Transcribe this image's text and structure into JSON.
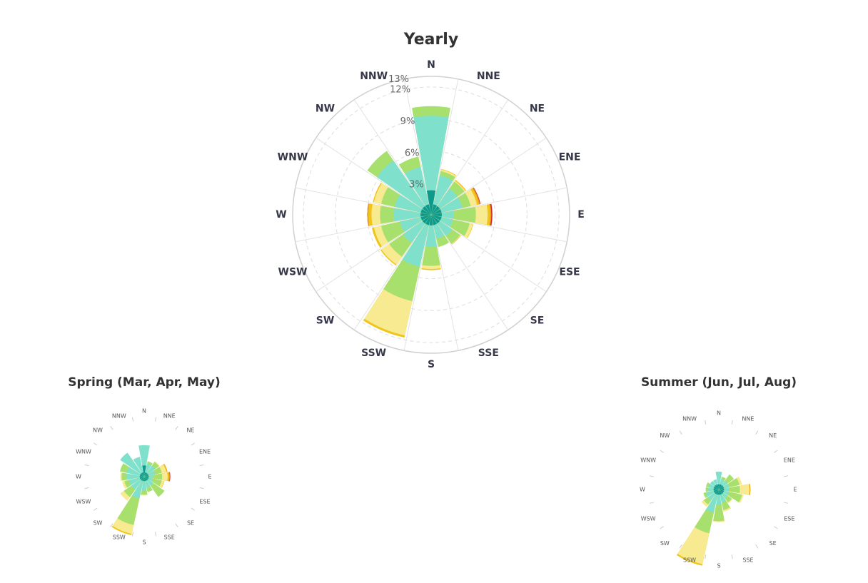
{
  "colors": {
    "bins": [
      "#0d9a8a",
      "#7fe0cc",
      "#a8e06e",
      "#f7ea90",
      "#f0c419",
      "#e8961e",
      "#cc2a2a"
    ],
    "grid_solid": "#d0d0d0",
    "grid_dashed": "#dddddd",
    "spoke": "#e3e3e3"
  },
  "chart_data": [
    {
      "type": "windrose",
      "title": "Yearly",
      "directions": [
        "N",
        "NNE",
        "NE",
        "ENE",
        "E",
        "ESE",
        "SE",
        "SSE",
        "S",
        "SSW",
        "SW",
        "WSW",
        "W",
        "WNW",
        "NW",
        "NNW"
      ],
      "rmax": 13,
      "radial_ticks": [
        "3%",
        "6%",
        "9%",
        "12%",
        "13%"
      ],
      "segments": [
        [
          2.3,
          9.3,
          10.2,
          10.2,
          10.2,
          10.2,
          10.2
        ],
        [
          1.0,
          3.8,
          4.2,
          4.35,
          4.4,
          4.4,
          4.4
        ],
        [
          1.0,
          3.0,
          3.8,
          3.9,
          4.0,
          4.0,
          4.0
        ],
        [
          1.0,
          3.0,
          3.8,
          4.4,
          4.6,
          4.7,
          4.75
        ],
        [
          1.0,
          2.1,
          4.2,
          5.3,
          5.55,
          5.65,
          5.75
        ],
        [
          1.0,
          2.1,
          3.7,
          4.0,
          4.05,
          4.05,
          4.05
        ],
        [
          1.0,
          2.4,
          3.3,
          3.35,
          3.4,
          3.4,
          3.4
        ],
        [
          1.0,
          2.3,
          3.1,
          3.1,
          3.1,
          3.1,
          3.1
        ],
        [
          1.0,
          3.0,
          4.8,
          5.1,
          5.2,
          5.2,
          5.2
        ],
        [
          1.0,
          5.0,
          8.3,
          11.6,
          11.8,
          11.8,
          11.8
        ],
        [
          1.0,
          3.2,
          4.8,
          5.7,
          5.8,
          5.8,
          5.8
        ],
        [
          1.0,
          3.0,
          4.8,
          5.5,
          5.7,
          5.7,
          5.7
        ],
        [
          1.0,
          3.5,
          4.8,
          5.6,
          5.9,
          6.0,
          6.0
        ],
        [
          1.0,
          3.5,
          4.8,
          5.5,
          5.6,
          5.6,
          5.6
        ],
        [
          1.0,
          6.2,
          7.3,
          7.3,
          7.3,
          7.3,
          7.3
        ],
        [
          1.0,
          4.6,
          5.6,
          5.6,
          5.6,
          5.6,
          5.6
        ]
      ]
    },
    {
      "type": "windrose",
      "title": "Spring (Mar, Apr, May)",
      "directions": [
        "N",
        "NNE",
        "NE",
        "ENE",
        "E",
        "ESE",
        "SE",
        "SSE",
        "S",
        "SSW",
        "SW",
        "WSW",
        "W",
        "WNW",
        "NW",
        "NNW"
      ],
      "rmax": 13,
      "radial_ticks": [],
      "segments": [
        [
          2.5,
          7.0,
          7.0,
          7.0,
          7.0,
          7.0,
          7.0
        ],
        [
          1.0,
          3.0,
          3.5,
          3.5,
          3.5,
          3.5,
          3.5
        ],
        [
          1.0,
          3.0,
          4.0,
          4.2,
          4.2,
          4.2,
          4.2
        ],
        [
          1.0,
          2.5,
          4.0,
          5.0,
          5.2,
          5.3,
          5.3
        ],
        [
          1.0,
          2.0,
          4.0,
          5.2,
          5.5,
          5.7,
          5.8
        ],
        [
          1.0,
          2.0,
          4.0,
          4.5,
          4.6,
          4.6,
          4.6
        ],
        [
          1.0,
          2.5,
          5.5,
          5.5,
          5.5,
          5.5,
          5.5
        ],
        [
          1.0,
          2.5,
          3.5,
          3.5,
          3.5,
          3.5,
          3.5
        ],
        [
          1.0,
          3.0,
          4.0,
          4.2,
          4.2,
          4.2,
          4.2
        ],
        [
          1.0,
          5.0,
          11.0,
          13.0,
          13.3,
          13.3,
          13.3
        ],
        [
          1.0,
          3.5,
          5.5,
          6.5,
          6.5,
          6.5,
          6.5
        ],
        [
          1.0,
          3.5,
          4.5,
          5.0,
          5.0,
          5.0,
          5.0
        ],
        [
          1.0,
          4.0,
          5.0,
          5.3,
          5.3,
          5.3,
          5.3
        ],
        [
          1.0,
          4.0,
          5.5,
          5.5,
          5.5,
          5.5,
          5.5
        ],
        [
          1.0,
          6.5,
          6.5,
          6.5,
          6.5,
          6.5,
          6.5
        ],
        [
          1.0,
          4.5,
          4.5,
          4.5,
          4.5,
          4.5,
          4.5
        ]
      ]
    },
    {
      "type": "windrose",
      "title": "Summer (Jun, Jul, Aug)",
      "directions": [
        "N",
        "NNE",
        "NE",
        "ENE",
        "E",
        "ESE",
        "SE",
        "SSE",
        "S",
        "SSW",
        "SW",
        "WSW",
        "W",
        "WNW",
        "NW",
        "NNW"
      ],
      "rmax": 13,
      "radial_ticks": [],
      "segments": [
        [
          1.0,
          3.4,
          3.4,
          3.4,
          3.4,
          3.4,
          3.4
        ],
        [
          1.0,
          2.0,
          2.5,
          2.5,
          2.5,
          2.5,
          2.5
        ],
        [
          1.0,
          2.0,
          3.5,
          3.5,
          3.5,
          3.5,
          3.5
        ],
        [
          1.0,
          2.0,
          4.0,
          4.5,
          4.5,
          4.5,
          4.5
        ],
        [
          1.0,
          2.0,
          4.0,
          5.8,
          5.9,
          6.0,
          6.0
        ],
        [
          1.0,
          2.0,
          4.5,
          4.8,
          4.8,
          4.8,
          4.8
        ],
        [
          1.0,
          2.0,
          3.0,
          3.2,
          3.2,
          3.2,
          3.2
        ],
        [
          1.0,
          2.5,
          4.0,
          4.3,
          4.3,
          4.3,
          4.3
        ],
        [
          1.0,
          3.0,
          6.0,
          6.2,
          6.2,
          6.2,
          6.2
        ],
        [
          1.0,
          4.5,
          8.5,
          14.5,
          14.8,
          14.8,
          14.8
        ],
        [
          1.0,
          2.5,
          3.5,
          4.0,
          4.0,
          4.0,
          4.0
        ],
        [
          1.0,
          2.5,
          3.0,
          3.0,
          3.0,
          3.0,
          3.0
        ],
        [
          1.0,
          2.0,
          2.5,
          2.5,
          2.5,
          2.5,
          2.5
        ],
        [
          1.0,
          2.0,
          2.5,
          2.5,
          2.5,
          2.5,
          2.5
        ],
        [
          1.0,
          2.0,
          2.0,
          2.0,
          2.0,
          2.0,
          2.0
        ],
        [
          1.0,
          2.0,
          2.0,
          2.0,
          2.0,
          2.0,
          2.0
        ]
      ]
    }
  ]
}
